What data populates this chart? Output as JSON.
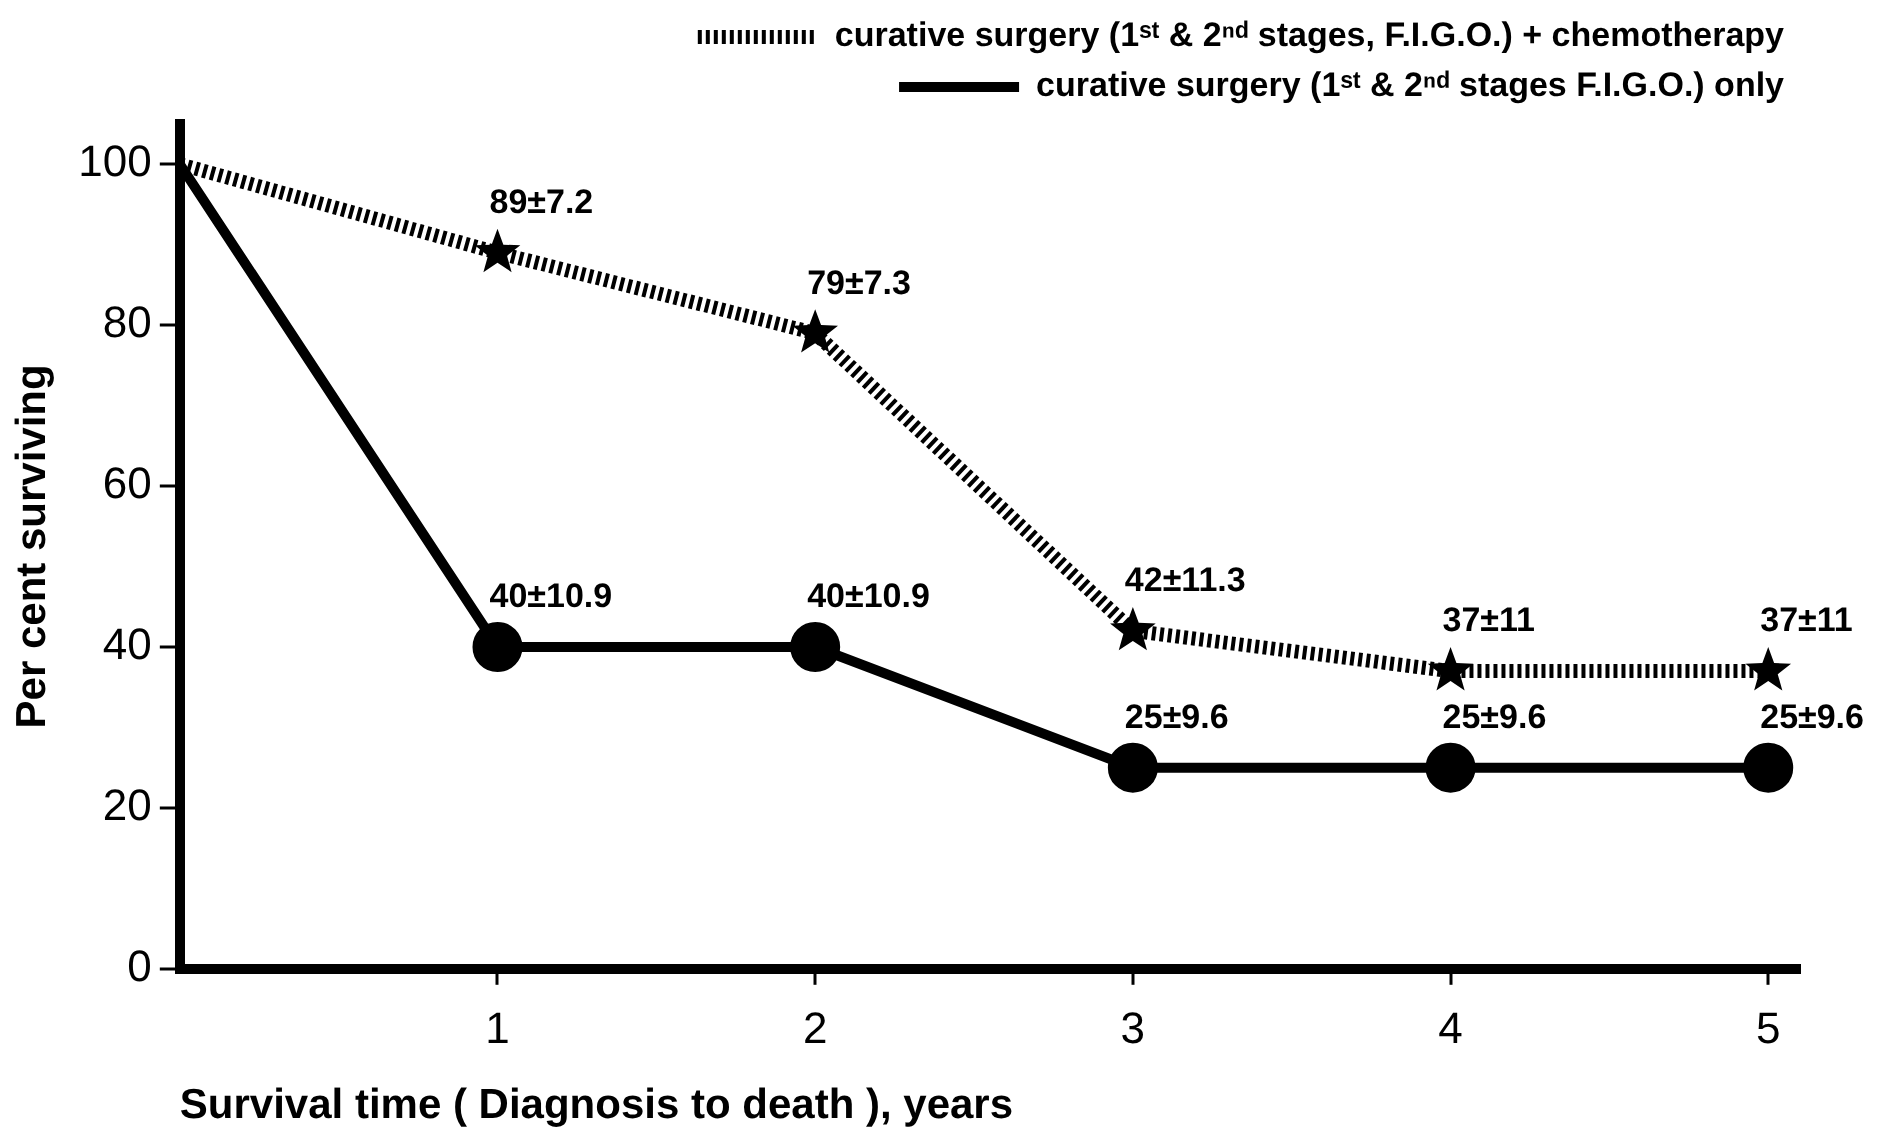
{
  "chart_data": {
    "type": "line",
    "xlabel": "Survival time ( Diagnosis to death ), years",
    "ylabel": "Per cent surviving",
    "x": [
      0,
      1,
      2,
      3,
      4,
      5
    ],
    "xlim": [
      0,
      5.1
    ],
    "xticks": [
      1,
      2,
      3,
      4,
      5
    ],
    "ylim": [
      0,
      105
    ],
    "yticks": [
      0,
      20,
      40,
      60,
      80,
      100
    ],
    "grid": false,
    "legend": "top right",
    "series": [
      {
        "name": "curative surgery (1ˢᵗ & 2ⁿᵈ stages, F.I.G.O.) + chemotherapy",
        "color": "#000000",
        "line_style": "dotted",
        "marker": "star",
        "values": [
          100,
          89,
          79,
          42,
          37,
          37
        ],
        "value_labels": [
          null,
          "89±7.2",
          "79±7.3",
          "42±11.3",
          "37±11",
          "37±11"
        ]
      },
      {
        "name": "curative surgery (1ˢᵗ & 2ⁿᵈ stages F.I.G.O.) only",
        "color": "#000000",
        "line_style": "solid",
        "marker": "circle",
        "values": [
          100,
          40,
          40,
          25,
          25,
          25
        ],
        "value_labels": [
          null,
          "40±10.9",
          "40±10.9",
          "25±9.6",
          "25±9.6",
          "25±9.6"
        ]
      }
    ]
  }
}
